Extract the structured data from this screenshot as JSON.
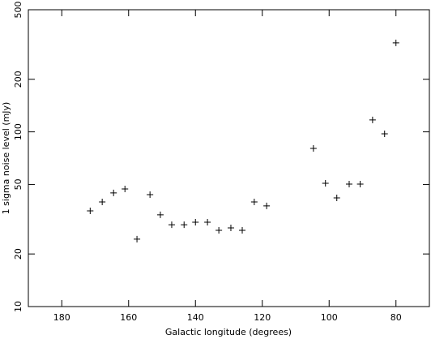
{
  "chart_data": {
    "type": "scatter",
    "x_label": "Galactic longitude (degrees)",
    "y_label": "1 sigma noise level (mJy)",
    "x": [
      171.5,
      167.9,
      164.5,
      161.1,
      157.5,
      153.6,
      150.5,
      147.1,
      143.4,
      140,
      136.4,
      133,
      129.4,
      126,
      122.4,
      118.7,
      104.7,
      101.1,
      97.7,
      94,
      90.7,
      87,
      83.4,
      80
    ],
    "values": [
      35.3,
      39.7,
      44.7,
      47.1,
      24.3,
      43.7,
      33.5,
      29.4,
      29.4,
      30.4,
      30.4,
      27.3,
      28.2,
      27.3,
      39.7,
      37.7,
      80.4,
      50.8,
      41.9,
      50.2,
      50.2,
      117,
      97.5,
      323
    ],
    "color": "#000000",
    "xlim": [
      190,
      70
    ],
    "xticks": [
      180,
      160,
      140,
      120,
      100,
      80
    ],
    "ylim": [
      10,
      500
    ],
    "yticks": [
      10,
      20,
      50,
      100,
      200,
      500
    ],
    "ylog": true
  }
}
